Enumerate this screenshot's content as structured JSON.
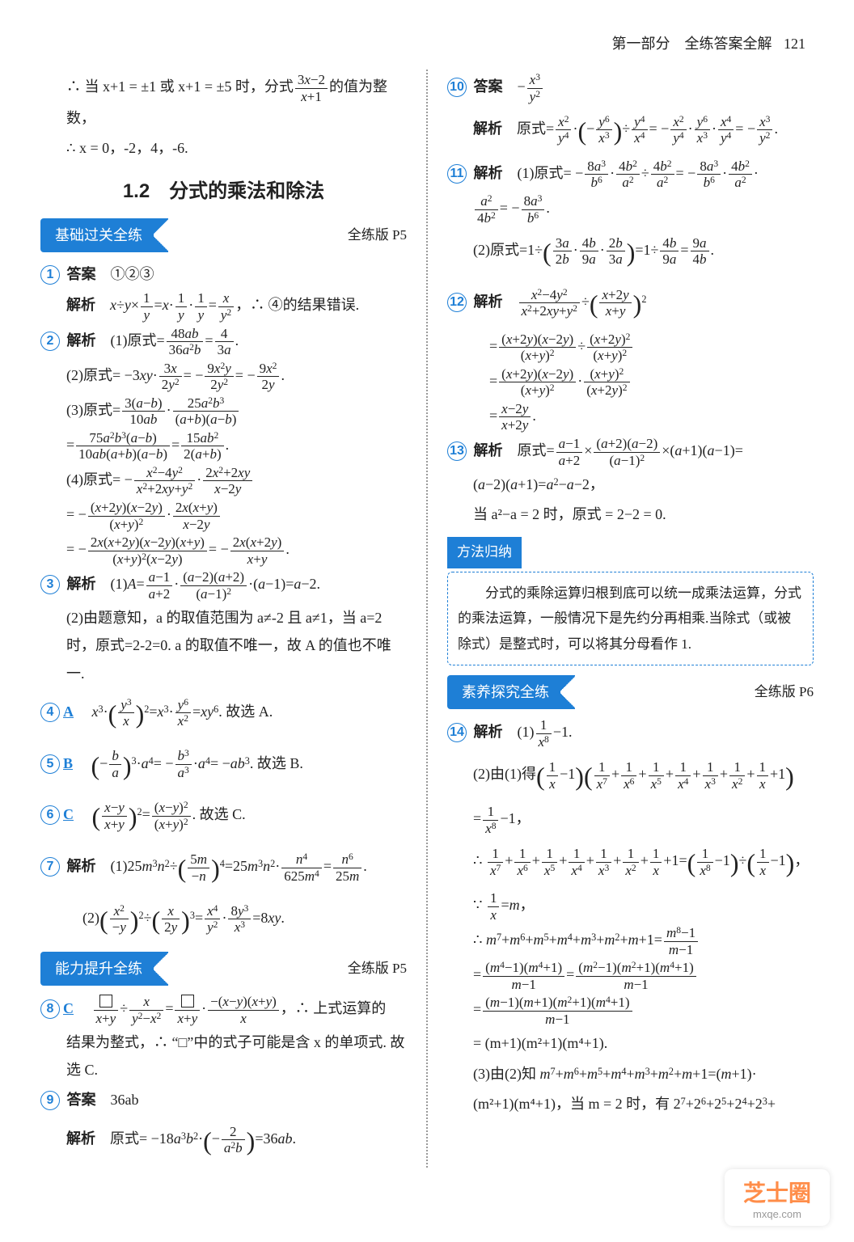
{
  "header": {
    "section": "第一部分　全练答案全解",
    "page": "121"
  },
  "title": "1.2　分式的乘法和除法",
  "pills": {
    "p1": "基础过关全练",
    "p2": "能力提升全练",
    "p3": "素养探究全练"
  },
  "refs": {
    "p5": "全练版 P5",
    "p6": "全练版 P6"
  },
  "labels": {
    "answer": "答案",
    "analysis": "解析",
    "method": "方法归纳"
  },
  "left": {
    "l0a": "∴ 当 x+1 = ±1 或 x+1 = ±5 时，分式",
    "l0b": "的值为整数，",
    "l0c": "∴ x = 0，-2，4，-6.",
    "q1ans": "①②③",
    "q1note": "∴ ④的结果错误.",
    "q3b": "(2)由题意知，a 的取值范围为 a≠-2 且 a≠1，当 a=2时，原式=2-2=0. a 的取值不唯一，故 A 的值也不唯一.",
    "q4ans": "A",
    "q4end": "故选 A.",
    "q5ans": "B",
    "q5end": "故选 B.",
    "q6ans": "C",
    "q6end": "故选 C.",
    "q8ans": "C",
    "q8b": "∴ 上式运算的",
    "q8c": "结果为整式，∴ “□”中的式子可能是含 x 的单项式. 故选 C.",
    "q9ans": "36ab"
  },
  "right": {
    "q13c": "当 a²−a = 2 时，原式 = 2−2 = 0.",
    "method_text": "　　分式的乘除运算归根到底可以统一成乘法运算，分式的乘法运算，一般情况下是先约分再相乘.当除式（或被除式）是整式时，可以将其分母看作 1.",
    "q14last1": "= (m+1)(m²+1)(m⁴+1).",
    "q14last2a": "(3)由(2)知",
    "q14last2b": "(m²+1)(m⁴+1)，当 m = 2 时，有"
  },
  "colors": {
    "accent": "#1e7fd6",
    "text": "#222222",
    "bg": "#ffffff",
    "watermark_orange": "#ff7a2a"
  },
  "watermark": {
    "logo": "芝士圈",
    "url": "mxqe.com"
  }
}
